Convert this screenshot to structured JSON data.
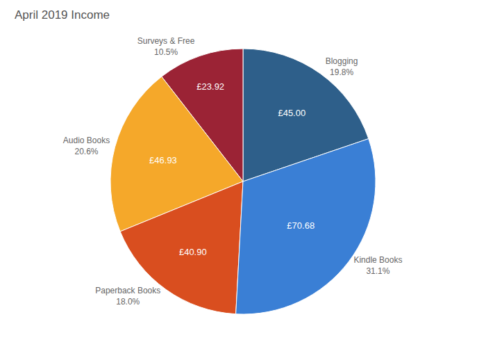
{
  "chart_data": {
    "type": "pie",
    "title": "April 2019 Income",
    "categories": [
      "Blogging",
      "Surveys & Free",
      "Audio Books",
      "Paperback Books",
      "Kindle Books"
    ],
    "values": [
      45.0,
      23.92,
      46.93,
      40.9,
      70.68
    ],
    "value_labels": [
      "£45.00",
      "£23.92",
      "£46.93",
      "£40.90",
      "£70.68"
    ],
    "percentages": [
      19.8,
      10.5,
      20.6,
      18.0,
      31.1
    ],
    "percentage_labels": [
      "19.8%",
      "10.5%",
      "20.6%",
      "18.0%",
      "31.1%"
    ],
    "colors": [
      "#2E5F8A",
      "#9B2335",
      "#F5A82A",
      "#D94E1F",
      "#3A7FD5"
    ],
    "data_labels": true
  }
}
